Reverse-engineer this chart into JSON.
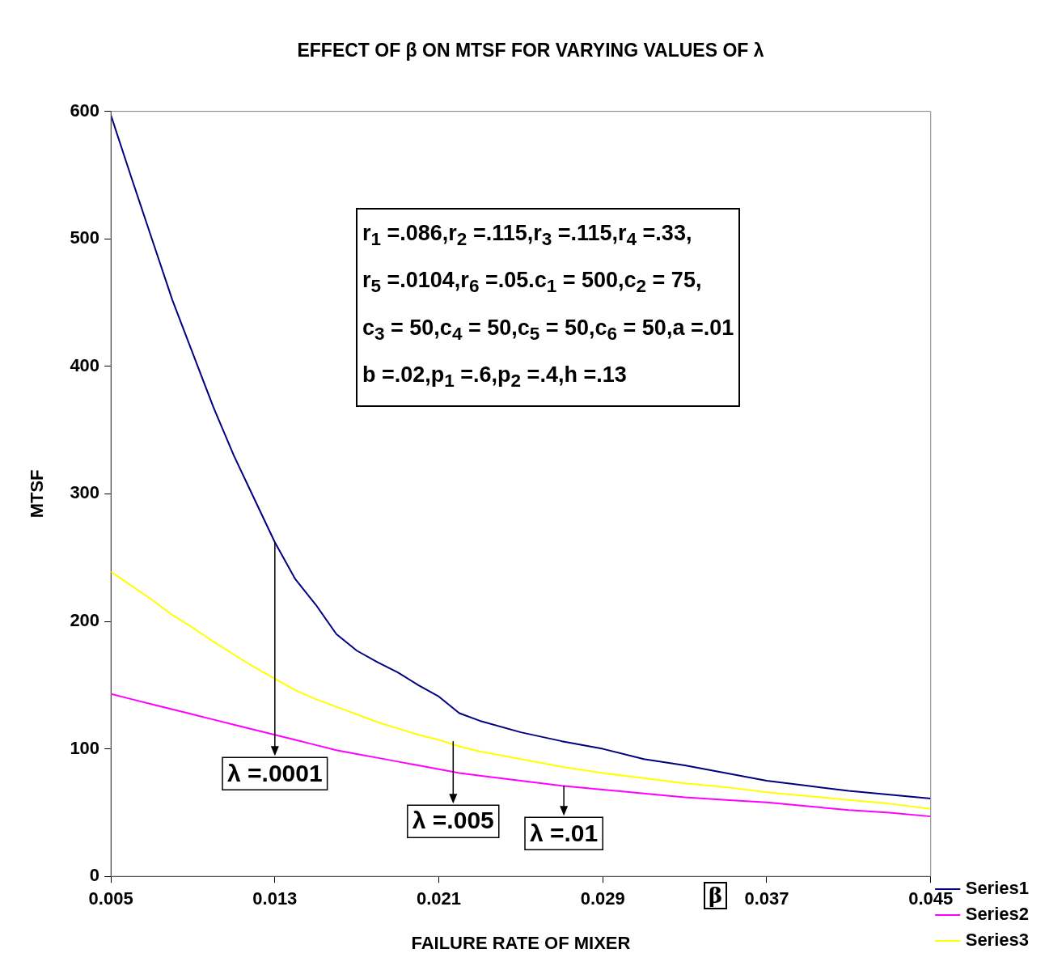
{
  "chart_data": {
    "type": "line",
    "title": "EFFECT OF β ON MTSF FOR VARYING VALUES OF λ",
    "xlabel": "FAILURE RATE OF MIXER",
    "ylabel": "MTSF",
    "x": [
      0.005,
      0.006,
      0.007,
      0.008,
      0.009,
      0.01,
      0.011,
      0.012,
      0.013,
      0.014,
      0.015,
      0.016,
      0.017,
      0.018,
      0.019,
      0.02,
      0.021,
      0.022,
      0.023,
      0.025,
      0.027,
      0.029,
      0.031,
      0.033,
      0.035,
      0.037,
      0.039,
      0.041,
      0.043,
      0.045
    ],
    "series": [
      {
        "name": "Series1",
        "color": "#000080",
        "values": [
          597,
          548,
          500,
          452,
          410,
          368,
          330,
          296,
          262,
          233,
          213,
          190,
          177,
          168,
          160,
          150,
          141,
          128,
          122,
          113,
          106,
          100,
          92,
          87,
          81,
          75,
          71,
          67,
          64,
          61
        ]
      },
      {
        "name": "Series2",
        "color": "#ff00ff",
        "values": [
          143,
          139,
          135,
          131,
          127,
          123,
          119,
          115,
          111,
          107,
          103,
          99,
          96,
          93,
          90,
          87,
          84,
          81,
          79,
          75,
          71,
          68,
          65,
          62,
          60,
          58,
          55,
          52,
          50,
          47
        ]
      },
      {
        "name": "Series3",
        "color": "#ffff00",
        "values": [
          239,
          228,
          217,
          205,
          195,
          184,
          174,
          164,
          155,
          146,
          139,
          133,
          127,
          121,
          116,
          111,
          107,
          102,
          98,
          92,
          86,
          81,
          77,
          73,
          70,
          66,
          63,
          60,
          57,
          53
        ]
      }
    ],
    "xlim": [
      0.005,
      0.045
    ],
    "xticks": [
      0.005,
      0.013,
      0.021,
      0.029,
      0.037,
      0.045
    ],
    "ylim": [
      0,
      600
    ],
    "yticks": [
      0,
      100,
      200,
      300,
      400,
      500,
      600
    ],
    "grid": false,
    "legend": "bottom right",
    "marker": "none",
    "line_style": "solid",
    "annotations": [
      "r$_{1}$ =.086,r$_{2}$ =.115,r$_{3}$ =.115,r$_{4}$ =.33,",
      "r$_{5}$ =.0104,r$_{6}$ =.05.c$_{1}$ = 500,c$_{2}$ = 75,",
      "c$_{3}$ = 50,c$_{4}$ = 50,c$_{5}$ = 50,c$_{6}$ = 50,a =.01",
      "b =.02,p$_{1}$ =.6,p$_{2}$ =.4,h =.13",
      {
        "text": "λ =.0001",
        "x": 0.013,
        "y": 262
      },
      {
        "text": "λ =.005",
        "x": 0.0217,
        "y": 106
      },
      {
        "text": "λ =.01",
        "x": 0.0271,
        "y": 71
      },
      "β"
    ]
  }
}
